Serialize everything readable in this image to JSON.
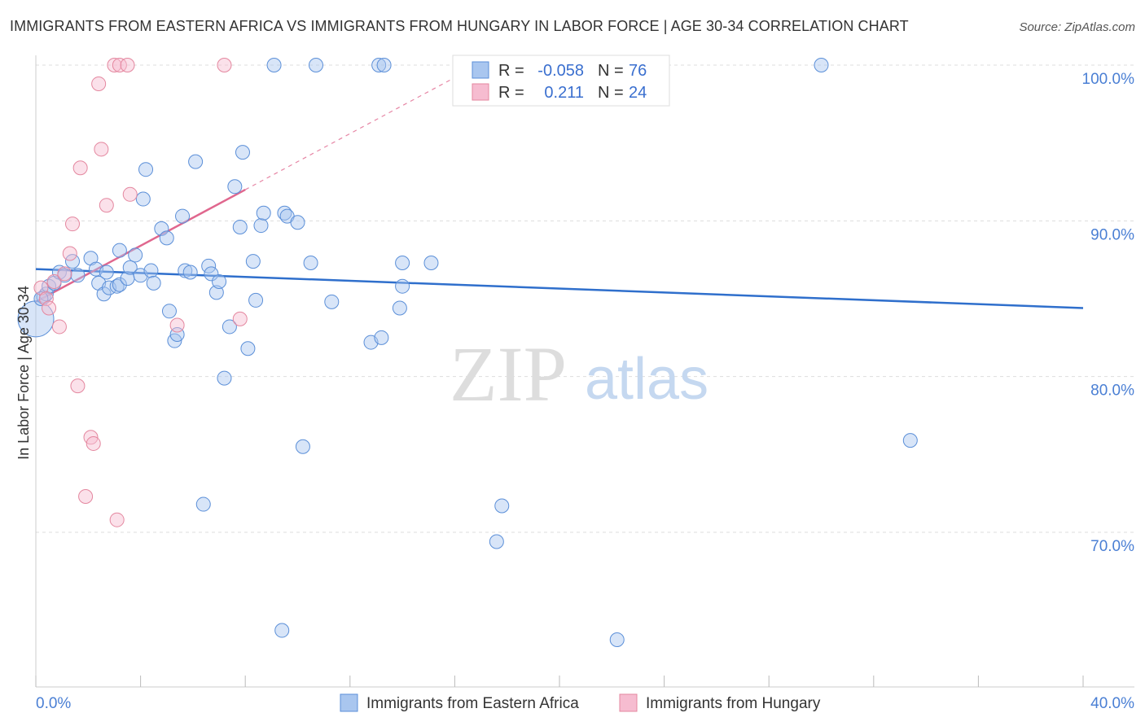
{
  "title": "IMMIGRANTS FROM EASTERN AFRICA VS IMMIGRANTS FROM HUNGARY IN LABOR FORCE | AGE 30-34 CORRELATION CHART",
  "source": "Source: ZipAtlas.com",
  "watermark": {
    "zip": "ZIP",
    "atlas": "atlas"
  },
  "colors": {
    "blue_fill": "#a9c6ef",
    "blue_stroke": "#5b8fd8",
    "blue_line": "#2f6fcc",
    "pink_fill": "#f6bcd0",
    "pink_stroke": "#e4879f",
    "pink_line": "#e0678e",
    "tick_text": "#4a7fd4",
    "grid": "#dddddd"
  },
  "stats": {
    "blue": {
      "r_label": "R =",
      "r_value": "-0.058",
      "n_label": "N =",
      "n_value": "76"
    },
    "pink": {
      "r_label": "R =",
      "r_value": "0.211",
      "n_label": "N =",
      "n_value": "24"
    }
  },
  "chart_data": {
    "type": "scatter",
    "title": "IMMIGRANTS FROM EASTERN AFRICA VS IMMIGRANTS FROM HUNGARY IN LABOR FORCE | AGE 30-34 CORRELATION CHART",
    "xlabel": "",
    "ylabel": "In Labor Force | Age 30-34",
    "xlim": [
      0,
      40
    ],
    "ylim": [
      60.5,
      101
    ],
    "x_tick_labels": [
      "0.0%",
      "40.0%"
    ],
    "y_ticks": [
      70,
      80,
      90,
      100
    ],
    "y_tick_labels": [
      "70.0%",
      "80.0%",
      "90.0%",
      "100.0%"
    ],
    "grid": true,
    "legend_position": "bottom-center",
    "series": [
      {
        "name": "Immigrants from Eastern Africa",
        "color": "#a9c6ef",
        "trend": {
          "x": [
            0,
            40
          ],
          "y": [
            86.9,
            84.4
          ]
        },
        "points": [
          [
            0.0,
            83.7
          ],
          [
            0.3,
            85.1
          ],
          [
            0.4,
            85.3
          ],
          [
            0.5,
            85.8
          ],
          [
            0.7,
            86.0
          ],
          [
            0.9,
            86.7
          ],
          [
            1.1,
            86.5
          ],
          [
            1.4,
            87.4
          ],
          [
            1.6,
            86.5
          ],
          [
            2.1,
            87.6
          ],
          [
            2.3,
            86.9
          ],
          [
            2.4,
            86.0
          ],
          [
            2.6,
            85.3
          ],
          [
            2.7,
            86.7
          ],
          [
            2.8,
            85.7
          ],
          [
            3.1,
            85.8
          ],
          [
            3.2,
            85.9
          ],
          [
            3.2,
            88.1
          ],
          [
            3.5,
            86.3
          ],
          [
            3.6,
            87.0
          ],
          [
            3.8,
            87.8
          ],
          [
            4.0,
            86.5
          ],
          [
            4.1,
            91.4
          ],
          [
            4.2,
            93.3
          ],
          [
            4.4,
            86.8
          ],
          [
            4.5,
            86.0
          ],
          [
            4.8,
            89.5
          ],
          [
            5.0,
            88.9
          ],
          [
            5.1,
            84.2
          ],
          [
            5.3,
            82.3
          ],
          [
            5.4,
            82.7
          ],
          [
            5.6,
            90.3
          ],
          [
            5.7,
            86.8
          ],
          [
            5.9,
            86.7
          ],
          [
            6.1,
            93.8
          ],
          [
            6.4,
            71.8
          ],
          [
            6.6,
            87.1
          ],
          [
            6.7,
            86.6
          ],
          [
            6.9,
            85.4
          ],
          [
            7.0,
            86.1
          ],
          [
            7.2,
            79.9
          ],
          [
            7.4,
            83.2
          ],
          [
            7.6,
            92.2
          ],
          [
            7.8,
            89.6
          ],
          [
            7.9,
            94.4
          ],
          [
            8.1,
            81.8
          ],
          [
            8.3,
            87.4
          ],
          [
            8.4,
            84.9
          ],
          [
            8.6,
            89.7
          ],
          [
            8.7,
            90.5
          ],
          [
            9.1,
            100.0
          ],
          [
            9.4,
            63.7
          ],
          [
            9.5,
            90.5
          ],
          [
            9.6,
            90.3
          ],
          [
            10.0,
            89.9
          ],
          [
            10.2,
            75.5
          ],
          [
            10.5,
            87.3
          ],
          [
            10.7,
            100.0
          ],
          [
            11.3,
            84.8
          ],
          [
            12.8,
            82.2
          ],
          [
            13.1,
            100.0
          ],
          [
            13.3,
            100.0
          ],
          [
            13.2,
            82.5
          ],
          [
            13.9,
            84.4
          ],
          [
            14.0,
            87.3
          ],
          [
            14.0,
            85.8
          ],
          [
            15.1,
            87.3
          ],
          [
            16.2,
            100.0
          ],
          [
            17.6,
            69.4
          ],
          [
            17.8,
            71.7
          ],
          [
            22.2,
            63.1
          ],
          [
            22.7,
            100.0
          ],
          [
            23.1,
            100.0
          ],
          [
            30.0,
            100.0
          ],
          [
            33.4,
            75.9
          ],
          [
            0.2,
            85.0
          ]
        ]
      },
      {
        "name": "Immigrants from Hungary",
        "color": "#f6bcd0",
        "trend": {
          "x": [
            0,
            8.0
          ],
          "y": [
            84.8,
            92.0
          ]
        },
        "points": [
          [
            0.2,
            85.7
          ],
          [
            0.4,
            85.0
          ],
          [
            0.5,
            84.4
          ],
          [
            0.7,
            86.1
          ],
          [
            0.9,
            83.2
          ],
          [
            1.1,
            86.6
          ],
          [
            1.3,
            87.9
          ],
          [
            1.4,
            89.8
          ],
          [
            1.6,
            79.4
          ],
          [
            1.7,
            93.4
          ],
          [
            1.9,
            72.3
          ],
          [
            2.1,
            76.1
          ],
          [
            2.2,
            75.7
          ],
          [
            2.4,
            98.8
          ],
          [
            2.5,
            94.6
          ],
          [
            2.7,
            91.0
          ],
          [
            3.0,
            100.0
          ],
          [
            3.1,
            70.8
          ],
          [
            3.2,
            100.0
          ],
          [
            3.5,
            100.0
          ],
          [
            3.6,
            91.7
          ],
          [
            5.4,
            83.3
          ],
          [
            7.2,
            100.0
          ],
          [
            7.8,
            83.7
          ]
        ]
      }
    ]
  }
}
